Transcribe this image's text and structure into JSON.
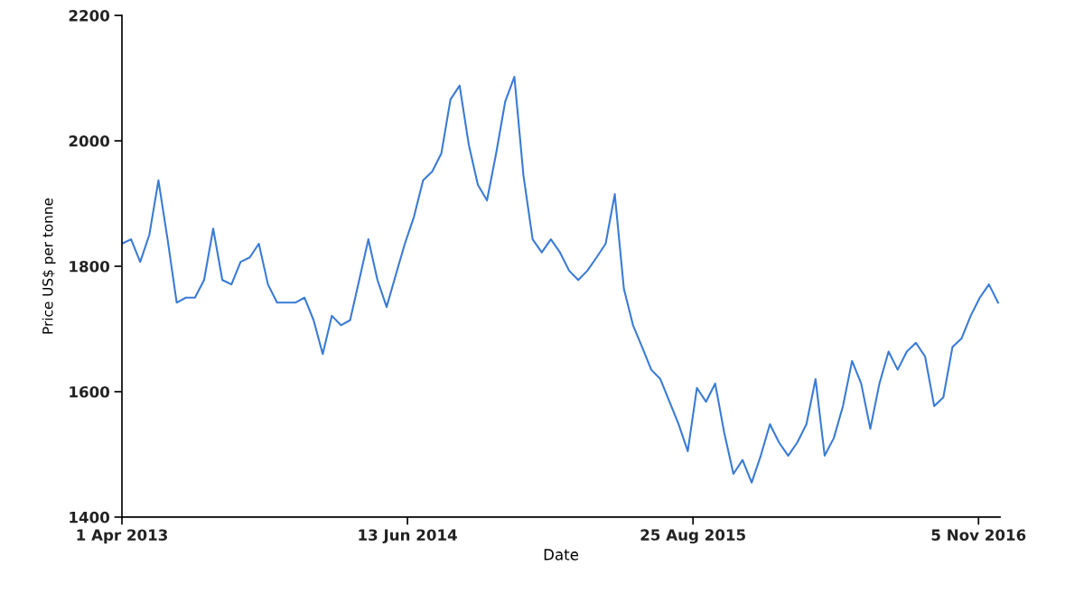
{
  "chart_data": {
    "type": "line",
    "xlabel": "Date",
    "ylabel": "Price US$ per tonne",
    "x": [
      "2013-04-01",
      "2013-04-15",
      "2013-04-29",
      "2013-05-13",
      "2013-05-27",
      "2013-06-10",
      "2013-06-24",
      "2013-07-08",
      "2013-07-22",
      "2013-08-05",
      "2013-08-19",
      "2013-09-02",
      "2013-09-16",
      "2013-09-30",
      "2013-10-14",
      "2013-10-28",
      "2013-11-11",
      "2013-11-25",
      "2013-12-09",
      "2013-12-23",
      "2014-01-06",
      "2014-01-20",
      "2014-02-03",
      "2014-02-17",
      "2014-03-03",
      "2014-03-17",
      "2014-03-31",
      "2014-04-14",
      "2014-04-28",
      "2014-05-12",
      "2014-05-26",
      "2014-06-09",
      "2014-06-23",
      "2014-07-07",
      "2014-07-21",
      "2014-08-04",
      "2014-08-18",
      "2014-09-01",
      "2014-09-15",
      "2014-09-29",
      "2014-10-13",
      "2014-10-27",
      "2014-11-10",
      "2014-11-24",
      "2014-12-08",
      "2014-12-22",
      "2015-01-05",
      "2015-01-19",
      "2015-02-02",
      "2015-02-16",
      "2015-03-02",
      "2015-03-16",
      "2015-03-30",
      "2015-04-13",
      "2015-04-27",
      "2015-05-11",
      "2015-05-25",
      "2015-06-08",
      "2015-06-22",
      "2015-07-06",
      "2015-07-20",
      "2015-08-03",
      "2015-08-17",
      "2015-08-31",
      "2015-09-14",
      "2015-09-28",
      "2015-10-12",
      "2015-10-26",
      "2015-11-09",
      "2015-11-23",
      "2015-12-07",
      "2015-12-21",
      "2016-01-04",
      "2016-01-18",
      "2016-02-01",
      "2016-02-15",
      "2016-02-29",
      "2016-03-14",
      "2016-03-28",
      "2016-04-11",
      "2016-04-25",
      "2016-05-09",
      "2016-05-23",
      "2016-06-06",
      "2016-06-20",
      "2016-07-04",
      "2016-07-18",
      "2016-08-01",
      "2016-08-15",
      "2016-08-29",
      "2016-09-12",
      "2016-09-26",
      "2016-10-10",
      "2016-10-24",
      "2016-11-07",
      "2016-11-21",
      "2016-12-05"
    ],
    "series": [
      {
        "color": "#3a7bd5",
        "values": [
          1836,
          1843,
          1807,
          1850,
          1937,
          1843,
          1742,
          1750,
          1750,
          1778,
          1860,
          1778,
          1771,
          1807,
          1814,
          1836,
          1771,
          1742,
          1742,
          1742,
          1750,
          1714,
          1660,
          1721,
          1706,
          1714,
          1778,
          1843,
          1778,
          1735,
          1786,
          1836,
          1879,
          1937,
          1951,
          1980,
          2066,
          2088,
          1994,
          1930,
          1905,
          1980,
          2063,
          2102,
          1944,
          1843,
          1822,
          1843,
          1822,
          1793,
          1778,
          1793,
          1814,
          1836,
          1915,
          1764,
          1706,
          1671,
          1635,
          1620,
          1584,
          1548,
          1505,
          1606,
          1584,
          1613,
          1534,
          1469,
          1491,
          1455,
          1498,
          1548,
          1519,
          1498,
          1519,
          1548,
          1620,
          1498,
          1526,
          1577,
          1649,
          1613,
          1541,
          1613,
          1664,
          1635,
          1664,
          1678,
          1656,
          1577,
          1591,
          1671,
          1685,
          1721,
          1750,
          1771,
          1742
        ]
      }
    ],
    "xlim": [
      "2013-04-01",
      "2016-12-08"
    ],
    "xticks": [
      {
        "value": "2013-04-01",
        "label": "1 Apr 2013"
      },
      {
        "value": "2014-06-13",
        "label": "13 Jun 2014"
      },
      {
        "value": "2015-08-25",
        "label": "25 Aug 2015"
      },
      {
        "value": "2016-11-05",
        "label": "5 Nov 2016"
      }
    ],
    "ylim": [
      1400,
      2200
    ],
    "yticks": [
      1400,
      1600,
      1800,
      2000,
      2200
    ],
    "grid": false,
    "marker": "none",
    "line_style": "solid"
  }
}
